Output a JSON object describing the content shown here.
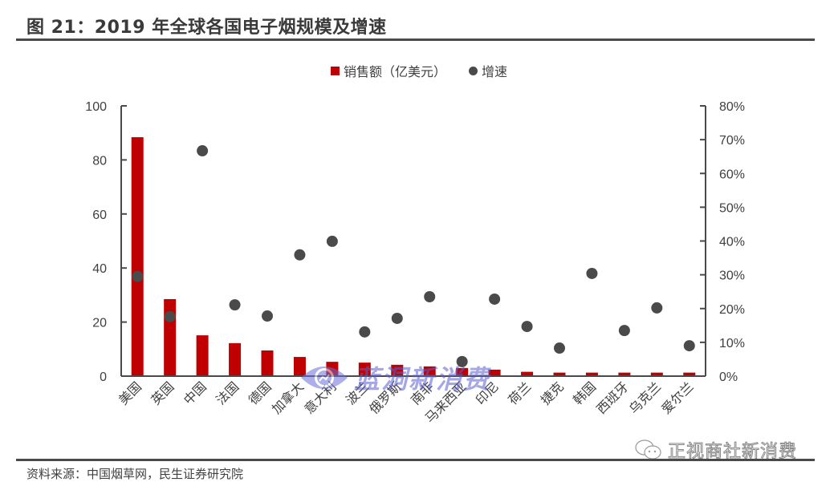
{
  "title": "图 21：2019 年全球各国电子烟规模及增速",
  "legend": {
    "series1": {
      "label": "销售额（亿美元）",
      "color": "#C00000"
    },
    "series2": {
      "label": "增速",
      "color": "#4A4A4A"
    }
  },
  "source": "资料来源：中国烟草网，民生证券研究院",
  "watermarks": {
    "center": "蓝洞新消费",
    "bottom_right": "正视商社新消费"
  },
  "chart_data": {
    "type": "bar",
    "title": "2019 年全球各国电子烟规模及增速",
    "categories": [
      "美国",
      "英国",
      "中国",
      "法国",
      "德国",
      "加拿大",
      "意大利",
      "波兰",
      "俄罗斯",
      "南非",
      "马来西亚",
      "印尼",
      "荷兰",
      "捷克",
      "韩国",
      "西班牙",
      "乌克兰",
      "爱尔兰"
    ],
    "series": [
      {
        "name": "销售额（亿美元）",
        "type": "bar",
        "axis": "left",
        "color": "#C00000",
        "values": [
          88.4,
          28.5,
          15.1,
          12.2,
          9.5,
          7.1,
          5.3,
          5.0,
          4.2,
          3.6,
          3.0,
          2.4,
          1.6,
          1.3,
          1.3,
          1.3,
          1.3,
          1.3
        ]
      },
      {
        "name": "增速",
        "type": "scatter",
        "axis": "right",
        "color": "#4A4A4A",
        "values": [
          0.295,
          0.176,
          0.667,
          0.211,
          0.178,
          0.359,
          0.399,
          0.131,
          0.171,
          0.235,
          0.043,
          0.228,
          0.147,
          0.083,
          0.304,
          0.135,
          0.202,
          0.09
        ]
      }
    ],
    "y_left": {
      "min": 0,
      "max": 100,
      "ticks": [
        "0",
        "20",
        "40",
        "60",
        "80",
        "100"
      ]
    },
    "y_right": {
      "min": 0,
      "max": 0.8,
      "ticks": [
        "0%",
        "10%",
        "20%",
        "30%",
        "40%",
        "50%",
        "60%",
        "70%",
        "80%"
      ]
    },
    "xlabel": "",
    "ylabel": "",
    "grid": false,
    "legend_position": "top"
  }
}
